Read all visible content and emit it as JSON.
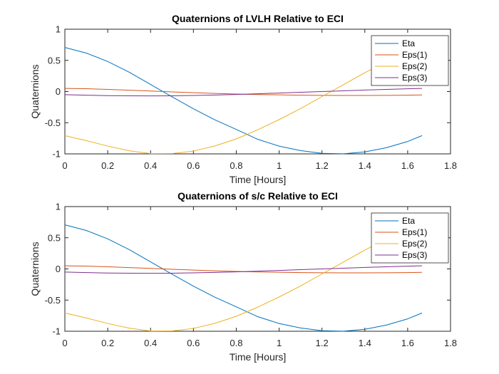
{
  "chart_data": [
    {
      "type": "line",
      "title": "Quaternions of LVLH Relative to ECI",
      "xlabel": "Time [Hours]",
      "ylabel": "Quaternions",
      "xlim": [
        0,
        1.8
      ],
      "ylim": [
        -1,
        1
      ],
      "xticks": [
        "0",
        "0.2",
        "0.4",
        "0.6",
        "0.8",
        "1",
        "1.2",
        "1.4",
        "1.6",
        "1.8"
      ],
      "yticks": [
        "1",
        "0.5",
        "0",
        "-0.5",
        "-1"
      ],
      "grid": false,
      "legend_position": "top-right",
      "x": [
        0,
        0.1,
        0.2,
        0.3,
        0.4,
        0.5,
        0.6,
        0.7,
        0.8,
        0.9,
        1.0,
        1.1,
        1.2,
        1.3,
        1.4,
        1.5,
        1.6,
        1.667
      ],
      "series": [
        {
          "name": "Eta",
          "color": "#0072BD",
          "values": [
            0.707,
            0.617,
            0.482,
            0.311,
            0.113,
            -0.084,
            -0.276,
            -0.454,
            -0.608,
            -0.766,
            -0.876,
            -0.947,
            -0.992,
            -0.999,
            -0.968,
            -0.901,
            -0.801,
            -0.707
          ]
        },
        {
          "name": "Eps(1)",
          "color": "#D95319",
          "values": [
            0.05,
            0.045,
            0.035,
            0.022,
            0.008,
            -0.005,
            -0.018,
            -0.03,
            -0.04,
            -0.048,
            -0.053,
            -0.058,
            -0.061,
            -0.063,
            -0.063,
            -0.061,
            -0.058,
            -0.055
          ]
        },
        {
          "name": "Eps(2)",
          "color": "#EDB120",
          "values": [
            -0.707,
            -0.787,
            -0.875,
            -0.95,
            -0.996,
            -0.995,
            -0.955,
            -0.873,
            -0.76,
            -0.614,
            -0.45,
            -0.274,
            -0.08,
            0.11,
            0.302,
            0.476,
            0.62,
            0.707
          ]
        },
        {
          "name": "Eps(3)",
          "color": "#7E2F8E",
          "values": [
            -0.05,
            -0.058,
            -0.065,
            -0.069,
            -0.07,
            -0.068,
            -0.063,
            -0.056,
            -0.047,
            -0.036,
            -0.024,
            -0.012,
            0.0,
            0.012,
            0.024,
            0.035,
            0.044,
            0.05
          ]
        }
      ]
    },
    {
      "type": "line",
      "title": "Quaternions of s/c Relative to ECI",
      "xlabel": "Time [Hours]",
      "ylabel": "Quaternions",
      "xlim": [
        0,
        1.8
      ],
      "ylim": [
        -1,
        1
      ],
      "xticks": [
        "0",
        "0.2",
        "0.4",
        "0.6",
        "0.8",
        "1",
        "1.2",
        "1.4",
        "1.6",
        "1.8"
      ],
      "yticks": [
        "1",
        "0.5",
        "0",
        "-0.5",
        "-1"
      ],
      "grid": false,
      "legend_position": "top-right",
      "x": [
        0,
        0.1,
        0.2,
        0.3,
        0.4,
        0.5,
        0.6,
        0.7,
        0.8,
        0.9,
        1.0,
        1.1,
        1.2,
        1.3,
        1.4,
        1.5,
        1.6,
        1.667
      ],
      "series": [
        {
          "name": "Eta",
          "color": "#0072BD",
          "values": [
            0.707,
            0.617,
            0.482,
            0.311,
            0.113,
            -0.084,
            -0.276,
            -0.454,
            -0.608,
            -0.766,
            -0.876,
            -0.947,
            -0.992,
            -0.999,
            -0.968,
            -0.901,
            -0.801,
            -0.707
          ]
        },
        {
          "name": "Eps(1)",
          "color": "#D95319",
          "values": [
            0.05,
            0.045,
            0.035,
            0.022,
            0.008,
            -0.005,
            -0.018,
            -0.03,
            -0.04,
            -0.048,
            -0.053,
            -0.058,
            -0.061,
            -0.063,
            -0.063,
            -0.061,
            -0.058,
            -0.055
          ]
        },
        {
          "name": "Eps(2)",
          "color": "#EDB120",
          "values": [
            -0.707,
            -0.787,
            -0.875,
            -0.95,
            -0.996,
            -0.995,
            -0.955,
            -0.873,
            -0.76,
            -0.614,
            -0.45,
            -0.274,
            -0.08,
            0.11,
            0.302,
            0.476,
            0.62,
            0.707
          ]
        },
        {
          "name": "Eps(3)",
          "color": "#7E2F8E",
          "values": [
            -0.05,
            -0.058,
            -0.065,
            -0.069,
            -0.07,
            -0.068,
            -0.063,
            -0.056,
            -0.047,
            -0.036,
            -0.024,
            -0.012,
            0.0,
            0.012,
            0.024,
            0.035,
            0.044,
            0.05
          ]
        }
      ]
    }
  ]
}
